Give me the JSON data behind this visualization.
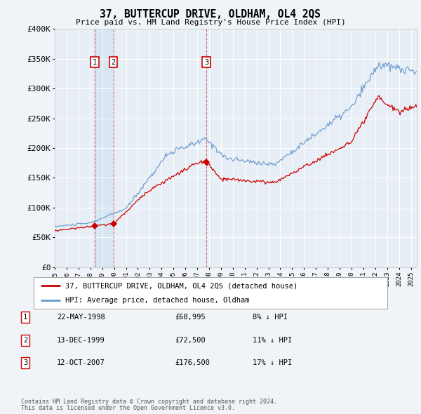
{
  "title": "37, BUTTERCUP DRIVE, OLDHAM, OL4 2QS",
  "subtitle": "Price paid vs. HM Land Registry's House Price Index (HPI)",
  "ylabel_ticks": [
    "£0",
    "£50K",
    "£100K",
    "£150K",
    "£200K",
    "£250K",
    "£300K",
    "£350K",
    "£400K"
  ],
  "ytick_values": [
    0,
    50000,
    100000,
    150000,
    200000,
    250000,
    300000,
    350000,
    400000
  ],
  "ylim": [
    0,
    400000
  ],
  "xlim_start": 1995.0,
  "xlim_end": 2025.5,
  "sale_color": "#cc0000",
  "hpi_color": "#6699cc",
  "hpi_fill_color": "#c8d8ea",
  "background_color": "#f0f4f8",
  "plot_bg_color": "#e8eef5",
  "grid_color": "#ffffff",
  "sale_label": "37, BUTTERCUP DRIVE, OLDHAM, OL4 2QS (detached house)",
  "hpi_label": "HPI: Average price, detached house, Oldham",
  "sales": [
    {
      "num": 1,
      "date": "22-MAY-1998",
      "price": 68995,
      "year": 1998.38,
      "pct": "8%",
      "dir": "↓"
    },
    {
      "num": 2,
      "date": "13-DEC-1999",
      "price": 72500,
      "year": 1999.95,
      "pct": "11%",
      "dir": "↓"
    },
    {
      "num": 3,
      "date": "12-OCT-2007",
      "price": 176500,
      "year": 2007.78,
      "pct": "17%",
      "dir": "↓"
    }
  ],
  "footer_line1": "Contains HM Land Registry data © Crown copyright and database right 2024.",
  "footer_line2": "This data is licensed under the Open Government Licence v3.0."
}
